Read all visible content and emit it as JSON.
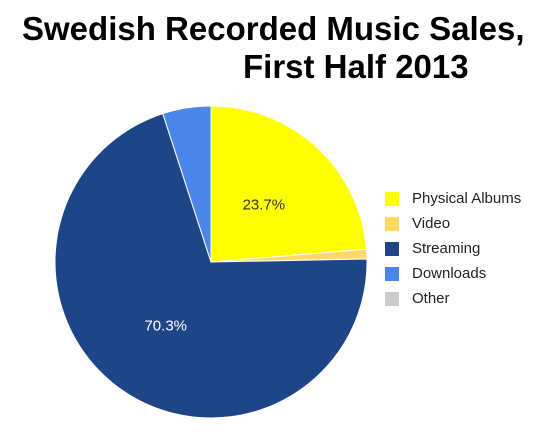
{
  "title": {
    "line1": "Swedish Recorded Music Sales,",
    "line2": "First Half 2013"
  },
  "chart_data": {
    "type": "pie",
    "title": "Swedish Recorded Music Sales, First Half 2013",
    "slices": [
      {
        "label": "Physical Albums",
        "value": 23.7,
        "color": "#FFFF00",
        "data_label": "23.7%"
      },
      {
        "label": "Video",
        "value": 1.0,
        "color": "#FFD966",
        "data_label": ""
      },
      {
        "label": "Streaming",
        "value": 70.3,
        "color": "#1F4589",
        "data_label": "70.3%"
      },
      {
        "label": "Downloads",
        "value": 5.0,
        "color": "#4A86E8",
        "data_label": ""
      },
      {
        "label": "Other",
        "value": 0.0,
        "color": "#CCCCCC",
        "data_label": ""
      }
    ],
    "start_angle": "12 o'clock",
    "direction": "clockwise",
    "legend_position": "right",
    "data_label_colors": {
      "Physical Albums": "#333333",
      "Streaming": "#ffffff"
    }
  }
}
